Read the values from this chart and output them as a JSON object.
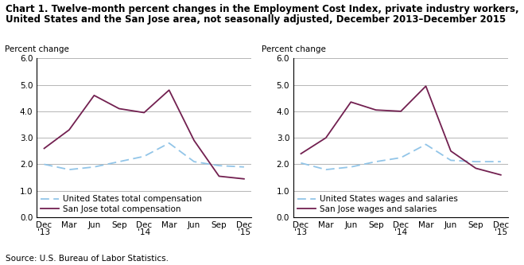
{
  "title_line1": "Chart 1. Twelve-month percent changes in the Employment Cost Index, private industry workers,",
  "title_line2": "United States and the San Jose area, not seasonally adjusted, December 2013–December 2015",
  "source": "Source: U.S. Bureau of Labor Statistics.",
  "ylabel": "Percent change",
  "ylim": [
    0.0,
    6.0
  ],
  "yticks": [
    0.0,
    1.0,
    2.0,
    3.0,
    4.0,
    5.0,
    6.0
  ],
  "x_labels": [
    "Dec\n'13",
    "Mar",
    "Jun",
    "Sep",
    "Dec\n'14",
    "Mar",
    "Jun",
    "Sep",
    "Dec\n'15"
  ],
  "x_positions": [
    0,
    1,
    2,
    3,
    4,
    5,
    6,
    7,
    8
  ],
  "left_us": [
    2.0,
    1.8,
    1.9,
    2.1,
    2.3,
    2.8,
    2.1,
    1.95,
    1.9
  ],
  "left_sj": [
    2.6,
    3.3,
    4.6,
    4.1,
    3.95,
    4.8,
    2.9,
    1.55,
    1.45
  ],
  "right_us": [
    2.05,
    1.8,
    1.9,
    2.1,
    2.25,
    2.75,
    2.15,
    2.1,
    2.1
  ],
  "right_sj": [
    2.4,
    3.0,
    4.35,
    4.05,
    4.0,
    4.95,
    2.5,
    1.85,
    1.6
  ],
  "us_color": "#92C5E8",
  "sj_color": "#722050",
  "left_legend": [
    "United States total compensation",
    "San Jose total compensation"
  ],
  "right_legend": [
    "United States wages and salaries",
    "San Jose wages and salaries"
  ],
  "title_fontsize": 8.5,
  "axis_fontsize": 7.5,
  "legend_fontsize": 7.5,
  "source_fontsize": 7.5,
  "ylabel_fontsize": 7.5
}
